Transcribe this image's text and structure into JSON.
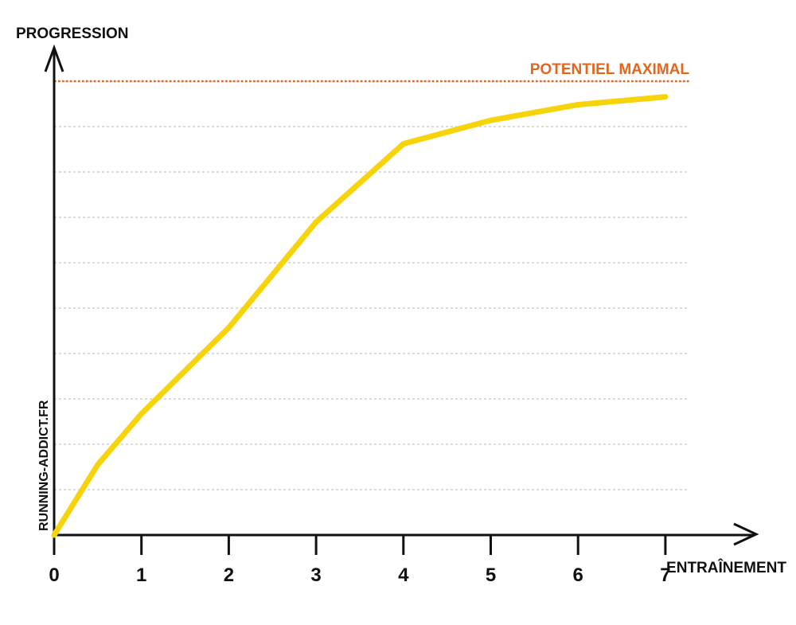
{
  "chart_data": {
    "type": "line",
    "title": "",
    "xlabel": "ENTRAÎNEMENT",
    "ylabel": "PROGRESSION",
    "x": [
      0,
      0.25,
      0.5,
      1,
      2,
      3,
      4,
      5,
      6,
      7
    ],
    "series": [
      {
        "values": [
          0,
          0.45,
          0.9,
          1.55,
          2.65,
          4.0,
          5.0,
          5.3,
          5.5,
          5.6
        ]
      }
    ],
    "xticks": [
      "0",
      "1",
      "2",
      "3",
      "4",
      "5",
      "6",
      "7"
    ],
    "xlim": [
      0,
      7.8
    ],
    "ylim": [
      0,
      5.8
    ],
    "reference_line": {
      "label": "POTENTIEL MAXIMAL",
      "value": 5.8,
      "style": "dotted"
    },
    "grid": "horizontal dotted",
    "colors": {
      "series": "#f7d40a",
      "reference": "#e2661d",
      "axis": "#111111",
      "grid": "#cfcfcf"
    }
  },
  "watermark": "RUNNING-ADDICT.FR"
}
